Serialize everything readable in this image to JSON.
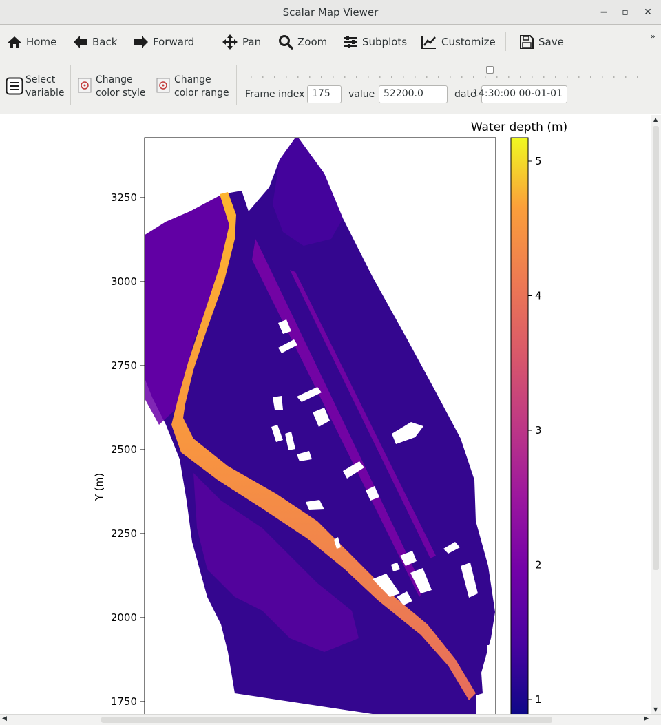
{
  "window": {
    "title": "Scalar Map Viewer",
    "minimize": "−",
    "maximize": "▫",
    "close": "✕"
  },
  "toolbar": {
    "home": "Home",
    "back": "Back",
    "forward": "Forward",
    "pan": "Pan",
    "zoom": "Zoom",
    "subplots": "Subplots",
    "customize": "Customize",
    "save": "Save",
    "overflow": "»"
  },
  "controls": {
    "select_variable": [
      "Select",
      "variable"
    ],
    "change_color_style": [
      "Change",
      "color style"
    ],
    "change_color_range": [
      "Change",
      "color range"
    ],
    "frame_index_label": "Frame index",
    "frame_index_value": "175",
    "value_label": "value",
    "value_value": "52200.0",
    "date_label": "date",
    "date_value": "00-01-01 14:30:00",
    "slider_fraction": 0.615
  },
  "colors": {
    "colormap": "plasma",
    "background": "#ffffff",
    "domain_low": "#0d0887"
  },
  "chart_data": {
    "type": "heatmap",
    "title": "",
    "ylabel": "Y (m)",
    "xlabel": "",
    "y_ticks": [
      1750,
      2000,
      2250,
      2500,
      2750,
      3000,
      3250
    ],
    "y_tick_labels": [
      "1750",
      "2000",
      "2250",
      "2500",
      "2750",
      "3000",
      "3250"
    ],
    "colorbar": {
      "label": "Water depth (m)",
      "ticks": [
        1,
        2,
        3,
        4,
        5
      ],
      "tick_labels": [
        "1",
        "2",
        "3",
        "4",
        "5"
      ],
      "range": [
        0.9,
        5.2
      ],
      "colormap": "plasma"
    }
  }
}
